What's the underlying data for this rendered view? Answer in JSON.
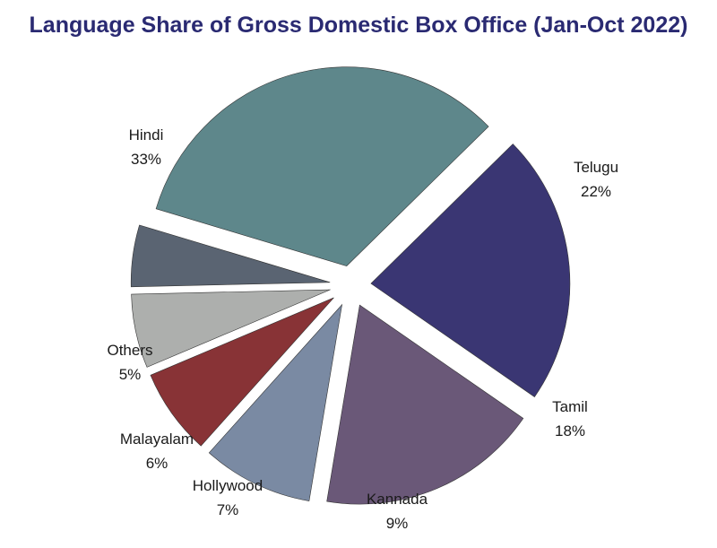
{
  "chart_data": {
    "type": "pie",
    "title": "Language Share of Gross Domestic Box Office (Jan-Oct 2022)",
    "slices": [
      {
        "label": "Hindi",
        "value": 33,
        "value_label": "33%",
        "color": "#5e878b"
      },
      {
        "label": "Telugu",
        "value": 22,
        "value_label": "22%",
        "color": "#3a3673"
      },
      {
        "label": "Tamil",
        "value": 18,
        "value_label": "18%",
        "color": "#6a5878"
      },
      {
        "label": "Kannada",
        "value": 9,
        "value_label": "9%",
        "color": "#7a8aa3"
      },
      {
        "label": "Hollywood",
        "value": 7,
        "value_label": "7%",
        "color": "#883336"
      },
      {
        "label": "Malayalam",
        "value": 6,
        "value_label": "6%",
        "color": "#adafad"
      },
      {
        "label": "Others",
        "value": 5,
        "value_label": "5%",
        "color": "#5a6472"
      }
    ],
    "exploded": true,
    "legend": "none"
  }
}
